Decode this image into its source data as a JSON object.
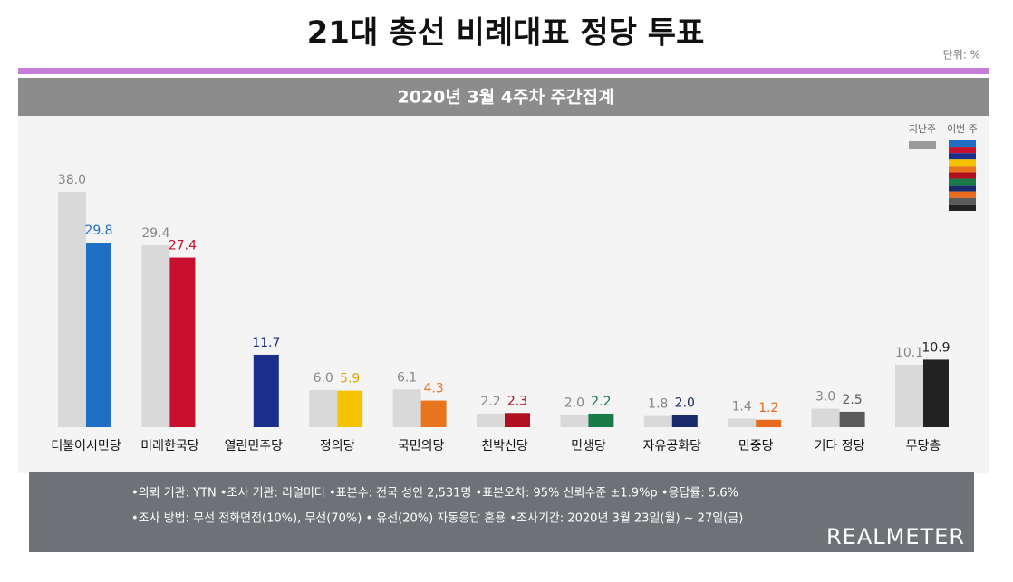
{
  "chart_data": {
    "type": "bar",
    "title": "21대 총선 비례대표 정당 투표",
    "unit": "단위: %",
    "subtitle": "2020년 3월 4주차 주간집계",
    "categories": [
      "더불어시민당",
      "미래한국당",
      "열린민주당",
      "정의당",
      "국민의당",
      "친박신당",
      "민생당",
      "자유공화당",
      "민중당",
      "기타 정당",
      "무당층"
    ],
    "series": [
      {
        "name": "지난주",
        "color": "#d9d9d9",
        "values": [
          38.0,
          29.4,
          null,
          6.0,
          6.1,
          2.2,
          2.0,
          1.8,
          1.4,
          3.0,
          10.1
        ],
        "value_labels": [
          "38.0",
          "29.4",
          null,
          "6.0",
          "6.1",
          "2.2",
          "2.0",
          "1.8",
          "1.4",
          "3.0",
          "10.1"
        ]
      },
      {
        "name": "이번 주",
        "colors": [
          "#1f6fc4",
          "#c8102e",
          "#1b2f8a",
          "#f5c400",
          "#e8741e",
          "#b01020",
          "#1a7a4a",
          "#1a2a6a",
          "#e86a1a",
          "#5a5a5a",
          "#222222"
        ],
        "values": [
          29.8,
          27.4,
          11.7,
          5.9,
          4.3,
          2.3,
          2.2,
          2.0,
          1.2,
          2.5,
          10.9
        ],
        "value_labels": [
          "29.8",
          "27.4",
          "11.7",
          "5.9",
          "4.3",
          "2.3",
          "2.2",
          "2.0",
          "1.2",
          "2.5",
          "10.9"
        ]
      }
    ],
    "footer": [
      "•의뢰 기관: YTN •조사 기관: 리얼미터 •표본수: 전국 성인 2,531명 •표본오차: 95% 신뢰수준 ±1.9%p •응답률: 5.6%",
      "•조사 방법: 무선 전화면접(10%), 무선(70%) • 유선(20%) 자동응답 혼용  •조사기간: 2020년 3월 23일(월) ~ 27일(금)"
    ],
    "logo": "REALMETER"
  }
}
